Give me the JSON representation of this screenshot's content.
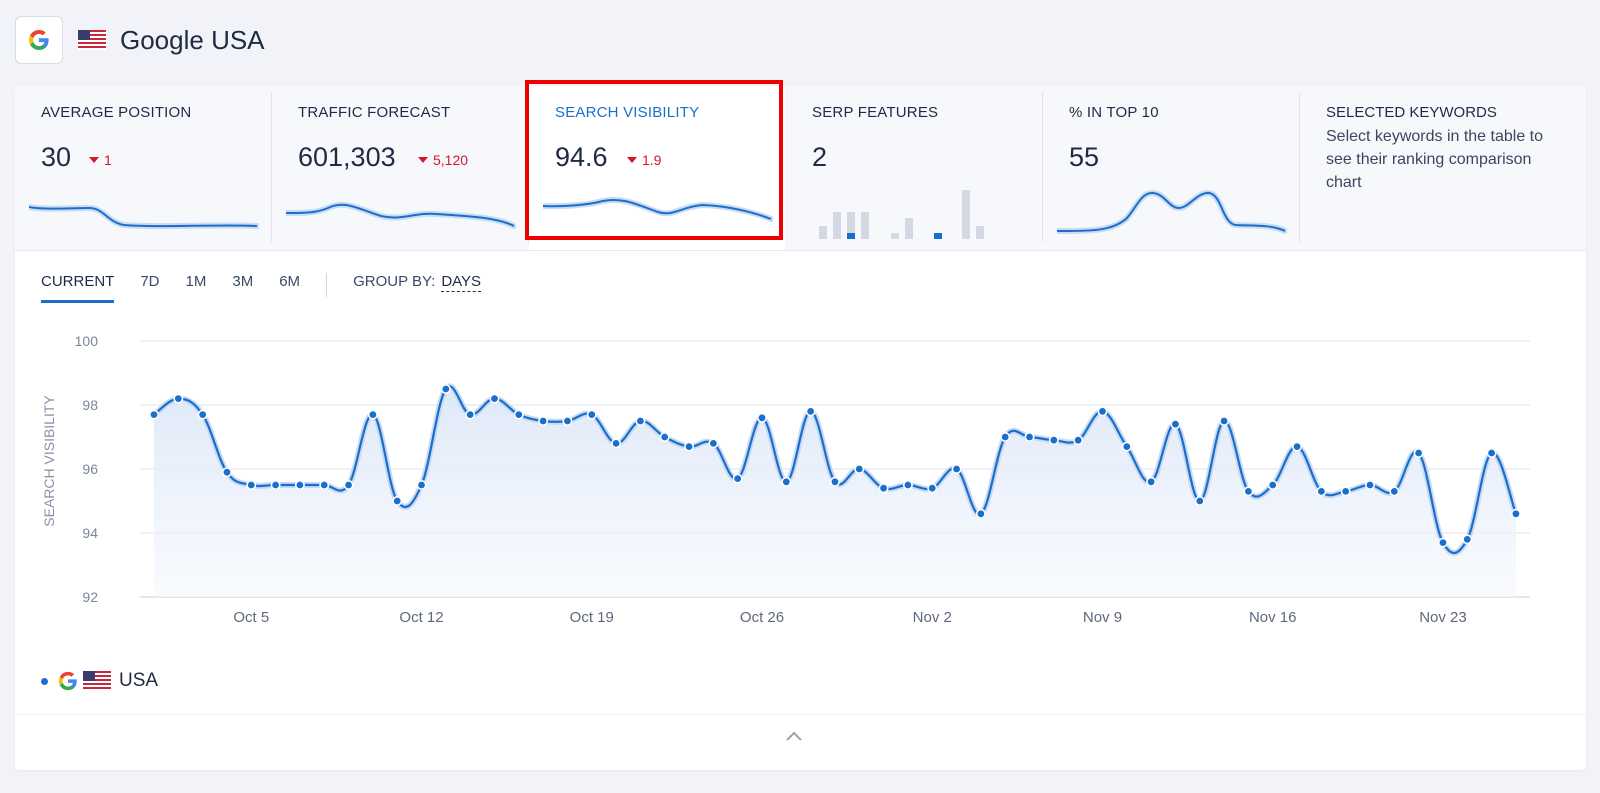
{
  "header": {
    "title": "Google USA",
    "engine_icon": "google-icon",
    "flag_icon": "us-flag-icon"
  },
  "metrics": [
    {
      "label": "AVERAGE POSITION",
      "value": "30",
      "delta": "1",
      "delta_dir": "down"
    },
    {
      "label": "TRAFFIC FORECAST",
      "value": "601,303",
      "delta": "5,120",
      "delta_dir": "down"
    },
    {
      "label": "SEARCH VISIBILITY",
      "value": "94.6",
      "delta": "1.9",
      "delta_dir": "down",
      "selected": true
    },
    {
      "label": "SERP FEATURES",
      "value": "2"
    },
    {
      "label": "% IN TOP 10",
      "value": "55"
    },
    {
      "label": "SELECTED KEYWORDS",
      "description": "Select keywords in the table to see their ranking comparison chart"
    }
  ],
  "tabs": [
    {
      "label": "CURRENT",
      "active": true
    },
    {
      "label": "7D"
    },
    {
      "label": "1M"
    },
    {
      "label": "3M"
    },
    {
      "label": "6M"
    }
  ],
  "group_by": {
    "label": "GROUP BY:",
    "value": "DAYS"
  },
  "legend": {
    "label": "USA"
  },
  "colors": {
    "accent": "#1a6fcc",
    "negative": "#d3172d",
    "highlight": "#ee0000"
  },
  "chart_data": {
    "type": "line",
    "ylabel": "SEARCH VISIBILITY",
    "ylim": [
      92,
      100
    ],
    "yticks": [
      92,
      94,
      96,
      98,
      100
    ],
    "xtick_labels": [
      "Oct 5",
      "Oct 12",
      "Oct 19",
      "Oct 26",
      "Nov 2",
      "Nov 9",
      "Nov 16",
      "Nov 23"
    ],
    "xtick_index": [
      4,
      11,
      18,
      25,
      32,
      39,
      46,
      53
    ],
    "grid": true,
    "series": [
      {
        "name": "USA",
        "values": [
          97.7,
          98.2,
          97.7,
          95.9,
          95.5,
          95.5,
          95.5,
          95.5,
          95.5,
          97.7,
          95.0,
          95.5,
          98.5,
          97.7,
          98.2,
          97.7,
          97.5,
          97.5,
          97.7,
          96.8,
          97.5,
          97.0,
          96.7,
          96.8,
          95.7,
          97.6,
          95.6,
          97.8,
          95.6,
          96.0,
          95.4,
          95.5,
          95.4,
          96.0,
          94.6,
          97.0,
          97.0,
          96.9,
          96.9,
          97.8,
          96.7,
          95.6,
          97.4,
          95.0,
          97.5,
          95.3,
          95.5,
          96.7,
          95.3,
          95.3,
          95.5,
          95.3,
          96.5,
          93.7,
          93.8,
          96.5,
          94.6
        ]
      }
    ]
  }
}
